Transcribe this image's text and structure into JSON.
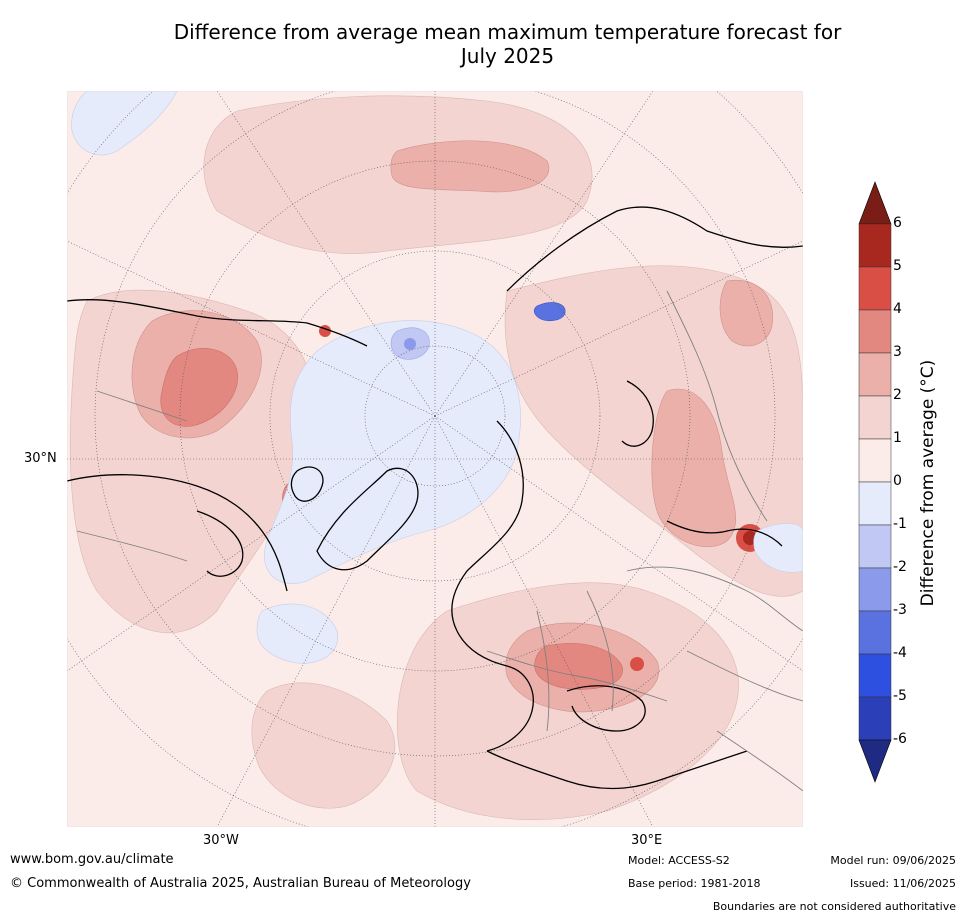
{
  "title": {
    "line1": "Difference from average mean maximum temperature forecast for",
    "line2": "July 2025"
  },
  "map": {
    "projection": "north-polar-stereographic",
    "lat_labels": [
      "30°N"
    ],
    "lon_labels": [
      "30°W",
      "30°E"
    ],
    "colors": {
      "pos_0_1": "#fbecea",
      "pos_1_2": "#f3d4d1",
      "pos_2_3": "#ebb0aa",
      "pos_3_4": "#e38880",
      "pos_4_5": "#da4f45",
      "pos_5_6": "#a8271e",
      "neg_0_1": "#e6ebfb",
      "neg_1_2": "#c0c8f3",
      "neg_2_3": "#8c9aec",
      "neg_3_4": "#5a72e0",
      "neg_4_5": "#2e50e0",
      "neg_5_6": "#2a3fb8",
      "coast": "#000000",
      "borders": "#808080"
    }
  },
  "colorbar": {
    "label": "Difference from average (°C)",
    "ticks": [
      "6",
      "5",
      "4",
      "3",
      "2",
      "1",
      "0",
      "-1",
      "-2",
      "-3",
      "-4",
      "-5",
      "-6"
    ],
    "segment_colors": [
      "#a8271e",
      "#da4f45",
      "#e38880",
      "#ebb0aa",
      "#f3d4d1",
      "#fbecea",
      "#e6ebfb",
      "#c0c8f3",
      "#8c9aec",
      "#5a72e0",
      "#2e50e0",
      "#2a3fb8"
    ],
    "top_arrow_color": "#7a1d17",
    "bottom_arrow_color": "#1f2b82"
  },
  "footer": {
    "website": "www.bom.gov.au/climate",
    "copyright": "© Commonwealth of Australia 2025, Australian Bureau of Meteorology",
    "model": "Model: ACCESS-S2",
    "base_period": "Base period: 1981-2018",
    "model_run": "Model run: 09/06/2025",
    "issued": "Issued: 11/06/2025",
    "boundaries_note": "Boundaries are not considered authoritative"
  }
}
